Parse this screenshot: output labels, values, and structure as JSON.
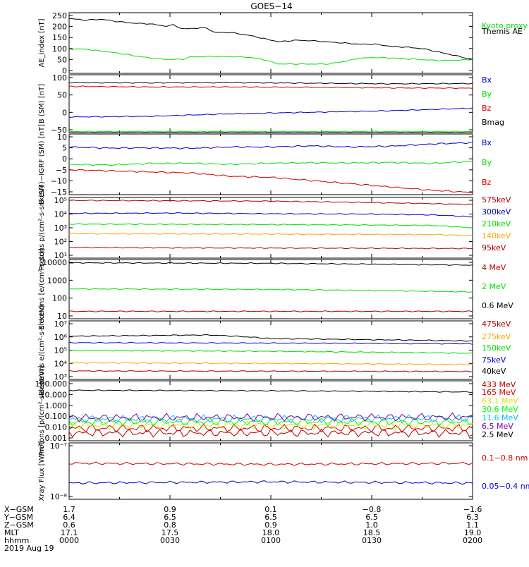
{
  "title": "GOES−14",
  "colors": {
    "black": "#000000",
    "green": "#00e000",
    "blue": "#0000d0",
    "red": "#d00000",
    "darkred": "#b00000",
    "orange": "#ffa500",
    "yellow": "#e0e000",
    "cyan": "#00c0ff",
    "purple": "#8000a0",
    "lime": "#00ff00"
  },
  "chart_data": [
    {
      "type": "line",
      "panel": "ae",
      "ylabel": "AE_index [nT]",
      "y_ticks": [
        "250",
        "200",
        "150",
        "100",
        "50",
        "0"
      ],
      "ylim": [
        0,
        260
      ],
      "series": [
        {
          "name": "Kyoto proxy AE",
          "color": "#00e000",
          "points": [
            [
              0,
              104
            ],
            [
              4,
              104
            ],
            [
              8,
              95
            ],
            [
              12,
              87
            ],
            [
              16,
              76
            ],
            [
              20,
              66
            ],
            [
              24,
              60
            ],
            [
              28,
              60
            ],
            [
              30,
              70
            ],
            [
              34,
              72
            ],
            [
              40,
              72
            ],
            [
              44,
              70
            ],
            [
              48,
              60
            ],
            [
              52,
              40
            ],
            [
              56,
              40
            ],
            [
              60,
              40
            ],
            [
              64,
              40
            ],
            [
              68,
              50
            ],
            [
              72,
              65
            ],
            [
              76,
              68
            ],
            [
              80,
              66
            ],
            [
              84,
              62
            ],
            [
              88,
              58
            ],
            [
              92,
              55
            ],
            [
              96,
              56
            ],
            [
              100,
              60
            ]
          ]
        },
        {
          "name": "Themis AE",
          "color": "#000000",
          "points": [
            [
              0,
              235
            ],
            [
              4,
              228
            ],
            [
              8,
              232
            ],
            [
              12,
              222
            ],
            [
              16,
              215
            ],
            [
              20,
              212
            ],
            [
              24,
              202
            ],
            [
              26,
              208
            ],
            [
              28,
              190
            ],
            [
              30,
              192
            ],
            [
              34,
              196
            ],
            [
              36,
              175
            ],
            [
              40,
              175
            ],
            [
              44,
              165
            ],
            [
              48,
              150
            ],
            [
              52,
              135
            ],
            [
              56,
              142
            ],
            [
              60,
              140
            ],
            [
              64,
              135
            ],
            [
              68,
              130
            ],
            [
              72,
              125
            ],
            [
              76,
              125
            ],
            [
              80,
              115
            ],
            [
              84,
              112
            ],
            [
              88,
              105
            ],
            [
              92,
              90
            ],
            [
              96,
              75
            ],
            [
              100,
              60
            ]
          ]
        }
      ]
    },
    {
      "type": "line",
      "panel": "bsm",
      "ylabel": "B (SM) [nT]",
      "y_ticks": [
        "100",
        "50",
        "0",
        "−50"
      ],
      "ylim": [
        -60,
        125
      ],
      "series": [
        {
          "name": "Bx",
          "color": "#0000d0",
          "points": [
            [
              0,
              -10
            ],
            [
              20,
              -8
            ],
            [
              40,
              0
            ],
            [
              60,
              5
            ],
            [
              80,
              10
            ],
            [
              100,
              18
            ]
          ]
        },
        {
          "name": "By",
          "color": "#00e000",
          "points": [
            [
              0,
              -57
            ],
            [
              100,
              -57
            ]
          ]
        },
        {
          "name": "Bz",
          "color": "#d00000",
          "points": [
            [
              0,
              88
            ],
            [
              20,
              86
            ],
            [
              40,
              86
            ],
            [
              60,
              85
            ],
            [
              80,
              83
            ],
            [
              100,
              82
            ]
          ]
        },
        {
          "name": "Bmag",
          "color": "#000000",
          "points": [
            [
              0,
              100
            ],
            [
              20,
              99
            ],
            [
              40,
              100
            ],
            [
              60,
              98
            ],
            [
              80,
              96
            ],
            [
              100,
              97
            ]
          ]
        }
      ]
    },
    {
      "type": "line",
      "panel": "bdiff",
      "ylabel": "B (SM)−IGRF (SM) [nT]",
      "y_ticks": [
        "10",
        "5",
        "0",
        "−5",
        "−10",
        "−15"
      ],
      "ylim": [
        -17,
        11
      ],
      "series": [
        {
          "name": "Bx",
          "color": "#0000d0",
          "points": [
            [
              0,
              5
            ],
            [
              10,
              4.5
            ],
            [
              20,
              4.6
            ],
            [
              30,
              4.4
            ],
            [
              40,
              5
            ],
            [
              50,
              5
            ],
            [
              60,
              5.5
            ],
            [
              70,
              5
            ],
            [
              80,
              5.4
            ],
            [
              90,
              6.4
            ],
            [
              100,
              7
            ]
          ]
        },
        {
          "name": "By",
          "color": "#00e000",
          "points": [
            [
              0,
              -3
            ],
            [
              10,
              -3.3
            ],
            [
              20,
              -2.6
            ],
            [
              30,
              -2.5
            ],
            [
              40,
              -3
            ],
            [
              50,
              -2.5
            ],
            [
              60,
              -2.3
            ],
            [
              70,
              -2.4
            ],
            [
              80,
              -2.1
            ],
            [
              90,
              -2.6
            ],
            [
              100,
              -1.6
            ]
          ]
        },
        {
          "name": "Bz",
          "color": "#d00000",
          "points": [
            [
              0,
              -5.5
            ],
            [
              10,
              -6
            ],
            [
              20,
              -6.5
            ],
            [
              30,
              -7
            ],
            [
              40,
              -8.5
            ],
            [
              50,
              -9
            ],
            [
              60,
              -10.5
            ],
            [
              70,
              -12
            ],
            [
              80,
              -13.5
            ],
            [
              90,
              -15
            ],
            [
              100,
              -16
            ]
          ]
        }
      ]
    },
    {
      "type": "line",
      "panel": "protons1",
      "log": true,
      "ylabel": "Protons p/(cm²-s-sr-keV)",
      "y_ticks": [
        "10⁵",
        "10⁴",
        "10³",
        "10²",
        "10¹"
      ],
      "ylim": [
        5,
        130000
      ],
      "series": [
        {
          "name": "575keV",
          "color": "#b00000",
          "points": [
            [
              0,
              80000
            ],
            [
              50,
              70000
            ],
            [
              100,
              40000
            ]
          ]
        },
        {
          "name": "300keV",
          "color": "#0000d0",
          "points": [
            [
              0,
              9000
            ],
            [
              25,
              9500
            ],
            [
              50,
              8500
            ],
            [
              75,
              8000
            ],
            [
              90,
              7000
            ],
            [
              100,
              5000
            ]
          ]
        },
        {
          "name": "210keV",
          "color": "#00e000",
          "points": [
            [
              0,
              1500
            ],
            [
              50,
              1400
            ],
            [
              90,
              1200
            ],
            [
              100,
              800
            ]
          ]
        },
        {
          "name": "140keV",
          "color": "#ffa500",
          "points": [
            [
              0,
              300
            ],
            [
              50,
              280
            ],
            [
              90,
              260
            ],
            [
              100,
              220
            ]
          ]
        },
        {
          "name": "95keV",
          "color": "#b00000",
          "points": [
            [
              0,
              30
            ],
            [
              25,
              28
            ],
            [
              50,
              27
            ],
            [
              75,
              26
            ],
            [
              100,
              25
            ]
          ]
        }
      ]
    },
    {
      "type": "line",
      "panel": "electrons1",
      "log": true,
      "ylabel": "Electrons [e/(cm²-s-sr)]",
      "y_ticks": [
        "10000",
        "1000",
        "100",
        "10"
      ],
      "ylim": [
        8,
        12000
      ],
      "series": [
        {
          "name": "4 MeV",
          "color": "#b00000",
          "points": [
            [
              0,
              20
            ],
            [
              50,
              20
            ],
            [
              100,
              20
            ]
          ]
        },
        {
          "name": "2 MeV",
          "color": "#00e000",
          "points": [
            [
              0,
              320
            ],
            [
              50,
              300
            ],
            [
              100,
              220
            ]
          ]
        },
        {
          "name": "0.6 MeV",
          "color": "#000000",
          "points": [
            [
              0,
              8000
            ],
            [
              50,
              7500
            ],
            [
              100,
              6000
            ]
          ]
        }
      ]
    },
    {
      "type": "line",
      "panel": "electrons2",
      "log": true,
      "ylabel": "Electrons e/(cm²-s-sr-keV)",
      "y_ticks": [
        "10⁷",
        "10⁶",
        "10⁵",
        "10⁴",
        "10³"
      ],
      "ylim": [
        600,
        12000000
      ],
      "series": [
        {
          "name": "475keV",
          "color": "#b00000",
          "points": [
            [
              0,
              2500
            ],
            [
              50,
              2400
            ],
            [
              100,
              2300
            ]
          ]
        },
        {
          "name": "275keV",
          "color": "#ffa500",
          "points": [
            [
              0,
              10000
            ],
            [
              50,
              9000
            ],
            [
              100,
              7500
            ]
          ]
        },
        {
          "name": "150keV",
          "color": "#00e000",
          "points": [
            [
              0,
              80000
            ],
            [
              50,
              70000
            ],
            [
              100,
              50000
            ]
          ]
        },
        {
          "name": "75keV",
          "color": "#0000d0",
          "points": [
            [
              0,
              300000
            ],
            [
              50,
              280000
            ],
            [
              100,
              250000
            ]
          ]
        },
        {
          "name": "40keV",
          "color": "#000000",
          "points": [
            [
              0,
              900000
            ],
            [
              35,
              1100000
            ],
            [
              50,
              600000
            ],
            [
              100,
              400000
            ]
          ]
        }
      ]
    },
    {
      "type": "line",
      "panel": "protons2",
      "log": true,
      "ylabel": "Protons [p/(cm²-s-sr-keV)]",
      "y_ticks": [
        "100.000",
        "10.000",
        "1.000",
        "0.100",
        "0.010",
        "0.001"
      ],
      "ylim": [
        0.0006,
        140
      ],
      "series": [
        {
          "name": "433 MeV",
          "color": "#b00000",
          "points": [
            [
              0,
              0.003
            ],
            [
              100,
              0.003
            ]
          ]
        },
        {
          "name": "165 MeV",
          "color": "#d00000",
          "points": [
            [
              0,
              0.008
            ],
            [
              100,
              0.008
            ]
          ]
        },
        {
          "name": "63.1 MeV",
          "color": "#e0e000",
          "points": [
            [
              0,
              0.015
            ],
            [
              100,
              0.015
            ]
          ]
        },
        {
          "name": "30.6 MeV",
          "color": "#00ff00",
          "points": [
            [
              0,
              0.03
            ],
            [
              100,
              0.03
            ]
          ]
        },
        {
          "name": "11.6 MeV",
          "color": "#00c0ff",
          "points": [
            [
              0,
              0.05
            ],
            [
              100,
              0.06
            ]
          ]
        },
        {
          "name": "6.5 MeV",
          "color": "#8000a0",
          "points": [
            [
              0,
              0.07
            ],
            [
              100,
              0.08
            ]
          ]
        },
        {
          "name": "2.5 MeV",
          "color": "#000000",
          "points": [
            [
              0,
              20
            ],
            [
              50,
              18
            ],
            [
              100,
              14
            ]
          ]
        }
      ]
    },
    {
      "type": "line",
      "panel": "xray",
      "log": true,
      "ylabel": "Xray Flux [W/m²]",
      "y_ticks": [
        "10⁻⁷",
        "10⁻⁸"
      ],
      "ylim": [
        9e-09,
        1e-07
      ],
      "series": [
        {
          "name": "0.1−0.8 nm",
          "color": "#d00000",
          "points": [
            [
              0,
              4.2e-08
            ],
            [
              50,
              4e-08
            ],
            [
              100,
              4.2e-08
            ]
          ]
        },
        {
          "name": "0.05−0.4 nm",
          "color": "#0000d0",
          "points": [
            [
              0,
              1.8e-08
            ],
            [
              50,
              1.9e-08
            ],
            [
              100,
              1.8e-08
            ]
          ]
        }
      ]
    }
  ],
  "x_axis": {
    "rows": [
      "X−GSM",
      "Y−GSM",
      "Z−GSM",
      "MLT",
      "hhmm"
    ],
    "date": "2019 Aug 19",
    "ticks": [
      {
        "t": 0,
        "values": [
          "1.7",
          "6.4",
          "0.6",
          "17.1",
          "0000"
        ]
      },
      {
        "t": 25,
        "values": [
          "0.9",
          "6.5",
          "0.8",
          "17.5",
          "0030"
        ]
      },
      {
        "t": 50,
        "values": [
          "0.1",
          "6.5",
          "0.9",
          "18.0",
          "0100"
        ]
      },
      {
        "t": 75,
        "values": [
          "−0.8",
          "6.5",
          "1.0",
          "18.5",
          "0130"
        ]
      },
      {
        "t": 100,
        "values": [
          "−1.6",
          "6.3",
          "1.1",
          "19.0",
          "0200"
        ]
      }
    ]
  }
}
